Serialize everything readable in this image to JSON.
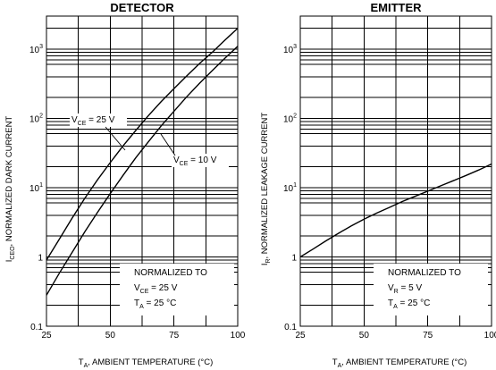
{
  "chart_data": [
    {
      "type": "line",
      "title": "DETECTOR",
      "ylabel": {
        "main": "I",
        "sub": "CEO",
        "rest": ", NORMALIZED DARK CURRENT"
      },
      "xlabel": {
        "main": "T",
        "sub": "A",
        "rest": ", AMBIENT TEMPERATURE (°C)"
      },
      "x_ticks": [
        "25",
        "50",
        "75",
        "100"
      ],
      "y_ticks": [
        {
          "base": "0.1",
          "exp": ""
        },
        {
          "base": "1",
          "exp": ""
        },
        {
          "base": "10",
          "exp": "1"
        },
        {
          "base": "10",
          "exp": "2"
        },
        {
          "base": "10",
          "exp": "3"
        }
      ],
      "xlim": [
        25,
        100
      ],
      "ylim": [
        0.1,
        3000
      ],
      "y_scale": "log",
      "grid": true,
      "series": [
        {
          "label_main": "V",
          "label_sub": "CE",
          "label_rest": " = 25 V",
          "x": [
            25,
            30,
            35,
            40,
            45,
            50,
            55,
            60,
            65,
            70,
            75,
            80,
            85,
            90,
            95,
            100
          ],
          "y": [
            0.9,
            1.8,
            3.6,
            7,
            13,
            23,
            40,
            67,
            110,
            175,
            270,
            410,
            620,
            900,
            1350,
            2000
          ]
        },
        {
          "label_main": "V",
          "label_sub": "CE",
          "label_rest": " = 10 V",
          "x": [
            25,
            30,
            35,
            40,
            45,
            50,
            55,
            60,
            65,
            70,
            75,
            80,
            85,
            90,
            95,
            100
          ],
          "y": [
            0.28,
            0.58,
            1.15,
            2.3,
            4.4,
            8.2,
            15,
            27,
            46,
            78,
            127,
            205,
            320,
            490,
            740,
            1100
          ]
        }
      ],
      "conditions": [
        {
          "main": "NORMALIZED TO",
          "sub": "",
          "rest": ""
        },
        {
          "main": "V",
          "sub": "CE",
          "rest": " = 25 V"
        },
        {
          "main": "T",
          "sub": "A",
          "rest": " = 25 °C"
        }
      ]
    },
    {
      "type": "line",
      "title": "EMITTER",
      "ylabel": {
        "main": "I",
        "sub": "R",
        "rest": ", NORMALIZED LEAKAGE CURRENT"
      },
      "xlabel": {
        "main": "T",
        "sub": "A",
        "rest": ", AMBIENT TEMPERATURE (°C)"
      },
      "x_ticks": [
        "25",
        "50",
        "75",
        "100"
      ],
      "y_ticks": [
        {
          "base": "0.1",
          "exp": ""
        },
        {
          "base": "1",
          "exp": ""
        },
        {
          "base": "10",
          "exp": "1"
        },
        {
          "base": "10",
          "exp": "2"
        },
        {
          "base": "10",
          "exp": "3"
        }
      ],
      "xlim": [
        25,
        100
      ],
      "ylim": [
        0.1,
        3000
      ],
      "y_scale": "log",
      "grid": true,
      "series": [
        {
          "x": [
            25,
            30,
            35,
            40,
            45,
            50,
            55,
            60,
            65,
            70,
            75,
            80,
            85,
            90,
            95,
            100
          ],
          "y": [
            1.0,
            1.3,
            1.7,
            2.2,
            2.8,
            3.5,
            4.3,
            5.2,
            6.3,
            7.5,
            8.9,
            10.6,
            12.6,
            15,
            18,
            22
          ]
        }
      ],
      "conditions": [
        {
          "main": "NORMALIZED TO",
          "sub": "",
          "rest": ""
        },
        {
          "main": "V",
          "sub": "R",
          "rest": " = 5 V"
        },
        {
          "main": "T",
          "sub": "A",
          "rest": " = 25 °C"
        }
      ]
    }
  ]
}
